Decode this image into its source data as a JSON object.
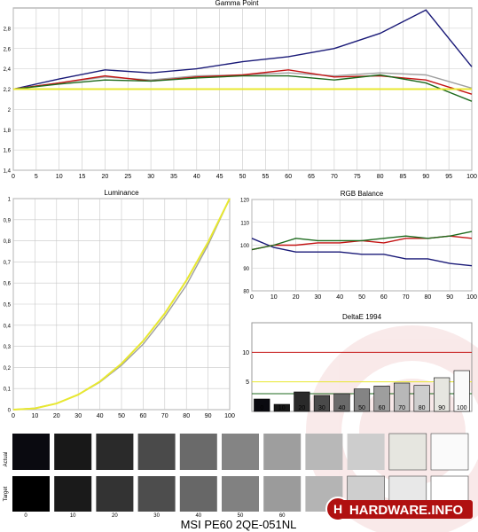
{
  "caption": "MSI PE60 2QE-051NL",
  "logo": {
    "text": "HARDWARE.INFO"
  },
  "colors": {
    "blue": "#1a1a78",
    "red": "#c41414",
    "green": "#1d6a1d",
    "gray": "#a0a0a0",
    "yellow": "#e8e830",
    "grid": "#c8c8c8"
  },
  "swatches": {
    "row_labels": [
      "Actual",
      "Target"
    ],
    "levels": [
      "0",
      "10",
      "20",
      "30",
      "40",
      "50",
      "60",
      "70",
      "80",
      "90",
      "100"
    ],
    "visible_level_labels": [
      "0",
      "10",
      "20",
      "30",
      "40",
      "50",
      "60"
    ],
    "actual": [
      "#0a0a10",
      "#181818",
      "#2a2a2a",
      "#4a4a4a",
      "#6a6a6a",
      "#848484",
      "#9e9e9e",
      "#b8b8b8",
      "#cdcdcd",
      "#e6e6e0",
      "#fafafa"
    ],
    "target": [
      "#000000",
      "#1a1a1a",
      "#333333",
      "#4d4d4d",
      "#676767",
      "#818181",
      "#9b9b9b",
      "#b4b4b4",
      "#cecece",
      "#e8e8e8",
      "#ffffff"
    ]
  },
  "chart_data": [
    {
      "id": "gamma",
      "type": "line",
      "title": "Gamma Point",
      "x": [
        0,
        10,
        20,
        30,
        40,
        50,
        60,
        70,
        80,
        90,
        100
      ],
      "xticks": [
        "0",
        "5",
        "10",
        "15",
        "20",
        "25",
        "30",
        "35",
        "40",
        "45",
        "50",
        "55",
        "60",
        "65",
        "70",
        "75",
        "80",
        "85",
        "90",
        "95",
        "100"
      ],
      "yticks": [
        "1,4",
        "1,6",
        "1,8",
        "2",
        "2,2",
        "2,4",
        "2,6",
        "2,8"
      ],
      "ylim": [
        1.4,
        3.0
      ],
      "grid": true,
      "series": [
        {
          "color": "blue",
          "values": [
            2.2,
            2.3,
            2.39,
            2.36,
            2.4,
            2.47,
            2.52,
            2.6,
            2.75,
            2.98,
            2.42
          ]
        },
        {
          "color": "gray",
          "values": [
            2.2,
            2.26,
            2.32,
            2.29,
            2.33,
            2.34,
            2.36,
            2.33,
            2.36,
            2.34,
            2.21
          ]
        },
        {
          "color": "red",
          "values": [
            2.2,
            2.26,
            2.33,
            2.28,
            2.32,
            2.34,
            2.39,
            2.32,
            2.33,
            2.29,
            2.15
          ]
        },
        {
          "color": "green",
          "values": [
            2.2,
            2.25,
            2.29,
            2.28,
            2.31,
            2.33,
            2.33,
            2.29,
            2.34,
            2.26,
            2.08
          ]
        },
        {
          "color": "yellow",
          "values": [
            2.2,
            2.2,
            2.2,
            2.2,
            2.2,
            2.2,
            2.2,
            2.2,
            2.2,
            2.2,
            2.2
          ]
        }
      ]
    },
    {
      "id": "luminance",
      "type": "line",
      "title": "Luminance",
      "x": [
        0,
        10,
        20,
        30,
        40,
        50,
        60,
        70,
        80,
        90,
        100
      ],
      "xticks": [
        "0",
        "10",
        "20",
        "30",
        "40",
        "50",
        "60",
        "70",
        "80",
        "90",
        "100"
      ],
      "yticks": [
        "0",
        "0,1",
        "0,2",
        "0,3",
        "0,4",
        "0,5",
        "0,6",
        "0,7",
        "0,8",
        "0,9",
        "1"
      ],
      "ylim": [
        0,
        1
      ],
      "grid": true,
      "series": [
        {
          "color": "gray",
          "values": [
            0,
            0.007,
            0.03,
            0.07,
            0.13,
            0.21,
            0.31,
            0.44,
            0.59,
            0.78,
            1.0
          ]
        },
        {
          "color": "yellow",
          "values": [
            0,
            0.006,
            0.029,
            0.071,
            0.133,
            0.218,
            0.325,
            0.456,
            0.612,
            0.793,
            1.0
          ]
        }
      ]
    },
    {
      "id": "rgb",
      "type": "line",
      "title": "RGB Balance",
      "x": [
        0,
        10,
        20,
        30,
        40,
        50,
        60,
        70,
        80,
        90,
        100
      ],
      "xticks": [
        "0",
        "10",
        "20",
        "30",
        "40",
        "50",
        "60",
        "70",
        "80",
        "90",
        "100"
      ],
      "yticks": [
        "80",
        "90",
        "100",
        "110",
        "120"
      ],
      "ylim": [
        80,
        120
      ],
      "grid": true,
      "series": [
        {
          "color": "blue",
          "values": [
            103,
            99,
            97,
            97,
            97,
            96,
            96,
            94,
            94,
            92,
            91
          ]
        },
        {
          "color": "red",
          "values": [
            98,
            100,
            100,
            101,
            101,
            102,
            101,
            103,
            103,
            104,
            103
          ]
        },
        {
          "color": "green",
          "values": [
            98,
            100,
            103,
            102,
            102,
            102,
            103,
            104,
            103,
            104,
            106
          ]
        }
      ]
    },
    {
      "id": "deltae",
      "type": "bar",
      "title": "DeltaE 1994",
      "categories": [
        "0",
        "10",
        "20",
        "30",
        "40",
        "50",
        "60",
        "70",
        "80",
        "90",
        "100"
      ],
      "values": [
        2.1,
        1.2,
        3.3,
        2.7,
        3.0,
        3.8,
        4.3,
        4.8,
        4.4,
        5.7,
        6.9
      ],
      "yticks": [
        "5",
        "10"
      ],
      "ylim": [
        0,
        15
      ],
      "thresholds": [
        {
          "value": 10,
          "color": "red"
        },
        {
          "value": 5,
          "color": "yellow"
        },
        {
          "value": 3,
          "color": "green"
        }
      ],
      "grid": true
    }
  ]
}
